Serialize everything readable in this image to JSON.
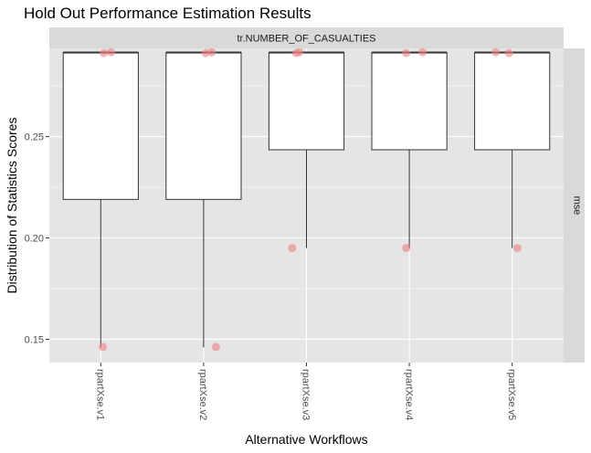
{
  "chart_data": {
    "type": "boxplot",
    "title": "Hold Out Performance Estimation Results",
    "xlabel": "Alternative Workflows",
    "ylabel": "Distribution of Statistics Scores",
    "facet_top": "tr.NUMBER_OF_CASUALTIES",
    "facet_right": "mse",
    "ylim": [
      0.1385,
      0.2935
    ],
    "y_ticks": [
      0.15,
      0.2,
      0.25
    ],
    "y_tick_labels": [
      "0.15",
      "0.20",
      "0.25"
    ],
    "categories": [
      "rpartXse.v1",
      "rpartXse.v2",
      "rpartXse.v3",
      "rpartXse.v4",
      "rpartXse.v5"
    ],
    "boxes": [
      {
        "name": "rpartXse.v1",
        "min": 0.146,
        "q1": 0.219,
        "median": 0.2915,
        "q3": 0.2915,
        "max": 0.2915
      },
      {
        "name": "rpartXse.v2",
        "min": 0.146,
        "q1": 0.219,
        "median": 0.2915,
        "q3": 0.2915,
        "max": 0.2915
      },
      {
        "name": "rpartXse.v3",
        "min": 0.195,
        "q1": 0.2435,
        "median": 0.2915,
        "q3": 0.2915,
        "max": 0.2915
      },
      {
        "name": "rpartXse.v4",
        "min": 0.195,
        "q1": 0.2435,
        "median": 0.2915,
        "q3": 0.2915,
        "max": 0.2915
      },
      {
        "name": "rpartXse.v5",
        "min": 0.195,
        "q1": 0.2435,
        "median": 0.2915,
        "q3": 0.2915,
        "max": 0.2915
      }
    ],
    "points": [
      {
        "category": "rpartXse.v1",
        "jitter": 0.02,
        "y": 0.1462
      },
      {
        "category": "rpartXse.v1",
        "jitter": 0.03,
        "y": 0.2912
      },
      {
        "category": "rpartXse.v1",
        "jitter": 0.1,
        "y": 0.2916
      },
      {
        "category": "rpartXse.v2",
        "jitter": 0.12,
        "y": 0.1462
      },
      {
        "category": "rpartXse.v2",
        "jitter": 0.02,
        "y": 0.2912
      },
      {
        "category": "rpartXse.v2",
        "jitter": 0.08,
        "y": 0.2916
      },
      {
        "category": "rpartXse.v3",
        "jitter": -0.14,
        "y": 0.195
      },
      {
        "category": "rpartXse.v3",
        "jitter": -0.1,
        "y": 0.2912
      },
      {
        "category": "rpartXse.v3",
        "jitter": -0.07,
        "y": 0.2916
      },
      {
        "category": "rpartXse.v4",
        "jitter": -0.03,
        "y": 0.195
      },
      {
        "category": "rpartXse.v4",
        "jitter": -0.03,
        "y": 0.2912
      },
      {
        "category": "rpartXse.v4",
        "jitter": 0.13,
        "y": 0.2916
      },
      {
        "category": "rpartXse.v5",
        "jitter": 0.05,
        "y": 0.195
      },
      {
        "category": "rpartXse.v5",
        "jitter": -0.16,
        "y": 0.2916
      },
      {
        "category": "rpartXse.v5",
        "jitter": -0.03,
        "y": 0.2912
      }
    ],
    "grid": true,
    "colors": {
      "panel_bg": "#e5e5e5",
      "grid": "#ffffff",
      "strip_bg": "#d9d9d9",
      "box_fill": "#ffffff",
      "box_stroke": "#333333",
      "point": "#f08080",
      "point_alpha": 0.6
    }
  }
}
